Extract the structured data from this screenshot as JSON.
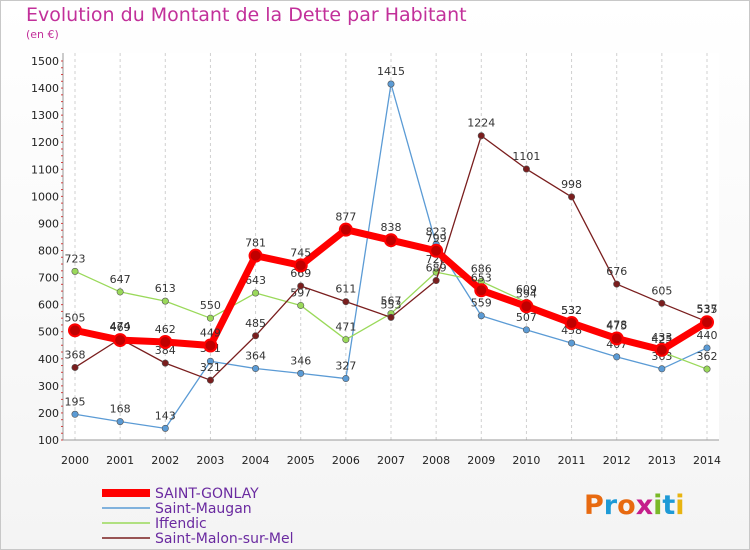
{
  "title": "Evolution du Montant de la Dette par Habitant",
  "subtitle": "(en €)",
  "logo": {
    "text": "Proxiti",
    "colors": [
      "#e86a10",
      "#1e9ad6",
      "#e86a10",
      "#c51d8a",
      "#7ab928",
      "#1e9ad6",
      "#e8b410"
    ]
  },
  "chart_data": {
    "type": "line",
    "x": [
      2000,
      2001,
      2002,
      2003,
      2004,
      2005,
      2006,
      2007,
      2008,
      2009,
      2010,
      2011,
      2012,
      2013,
      2014
    ],
    "ylim": [
      100,
      1500
    ],
    "yticks": [
      100,
      200,
      300,
      400,
      500,
      600,
      700,
      800,
      900,
      1000,
      1100,
      1200,
      1300,
      1400,
      1500
    ],
    "grid": "vertical-dashed",
    "legend": "bottom-left",
    "series": [
      {
        "name": "Saint-Maugan",
        "color": "#5b9bd5",
        "values": [
          195,
          168,
          143,
          391,
          364,
          346,
          327,
          1415,
          823,
          559,
          507,
          458,
          407,
          363,
          440
        ]
      },
      {
        "name": "Iffendic",
        "color": "#9ad95a",
        "values": [
          723,
          647,
          613,
          550,
          643,
          597,
          471,
          567,
          720,
          686,
          609,
          532,
          478,
          425,
          362
        ]
      },
      {
        "name": "Saint-Malon-sur-Mel",
        "color": "#7a1e1e",
        "values": [
          368,
          474,
          384,
          321,
          485,
          669,
          611,
          553,
          689,
          1224,
          1101,
          998,
          676,
          605,
          537
        ]
      },
      {
        "name": "SAINT-GONLAY",
        "color": "#ff0000",
        "values": [
          505,
          469,
          462,
          449,
          781,
          745,
          877,
          838,
          799,
          653,
          594,
          532,
          475,
          433,
          535
        ]
      }
    ]
  }
}
